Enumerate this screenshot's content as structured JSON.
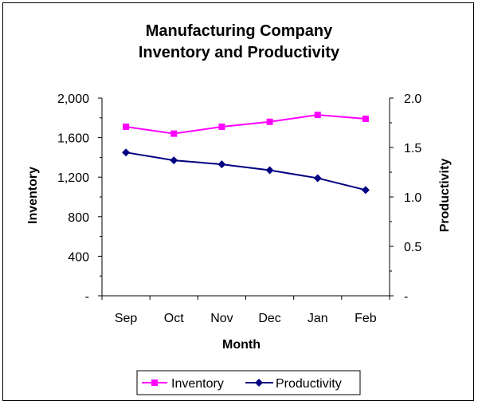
{
  "chart_data": {
    "type": "line",
    "title_line1": "Manufacturing Company",
    "title_line2": "Inventory and Productivity",
    "xlabel": "Month",
    "ylabel_left": "Inventory",
    "ylabel_right": "Productivity",
    "categories": [
      "Sep",
      "Oct",
      "Nov",
      "Dec",
      "Jan",
      "Feb"
    ],
    "y_left": {
      "min": 0,
      "max": 2000,
      "ticks": [
        0,
        400,
        800,
        1200,
        1600,
        2000
      ],
      "tick_labels": [
        "-",
        "400",
        "800",
        "1,200",
        "1,600",
        "2,000"
      ]
    },
    "y_right": {
      "min": 0,
      "max": 2.0,
      "ticks": [
        0,
        0.5,
        1.0,
        1.5,
        2.0
      ],
      "tick_labels": [
        "-",
        "0.5",
        "1.0",
        "1.5",
        "2.0"
      ]
    },
    "grid": false,
    "legend_position": "bottom",
    "series": [
      {
        "name": "Inventory",
        "axis": "left",
        "color": "#ff00ff",
        "marker": "square",
        "values": [
          1710,
          1640,
          1710,
          1760,
          1830,
          1790
        ]
      },
      {
        "name": "Productivity",
        "axis": "right",
        "color": "#000080",
        "marker": "diamond",
        "values": [
          1.45,
          1.37,
          1.33,
          1.27,
          1.19,
          1.07
        ]
      }
    ]
  }
}
